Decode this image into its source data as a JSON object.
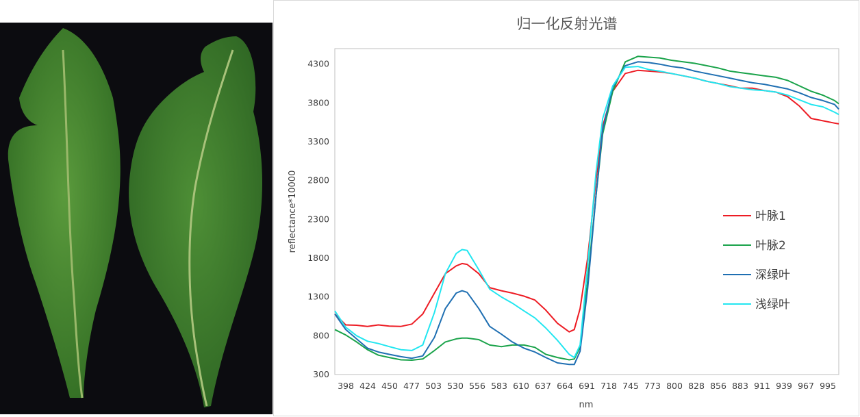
{
  "photo": {
    "description_icon": "leaf-photo"
  },
  "chart_data": {
    "type": "line",
    "title": "归一化反射光谱",
    "xlabel": "nm",
    "ylabel": "reflectance*10000",
    "ylim": [
      300,
      4500
    ],
    "yticks": [
      300,
      800,
      1300,
      1800,
      2300,
      2800,
      3300,
      3800,
      4300
    ],
    "xlim": [
      398,
      1000
    ],
    "xticks": [
      398,
      424,
      450,
      477,
      503,
      530,
      556,
      583,
      610,
      637,
      664,
      691,
      718,
      745,
      773,
      800,
      828,
      856,
      883,
      911,
      939,
      967,
      995
    ],
    "grid": false,
    "legend": "right",
    "x": [
      398,
      411,
      424,
      437,
      450,
      463,
      477,
      490,
      503,
      517,
      530,
      543,
      550,
      556,
      570,
      583,
      597,
      610,
      624,
      637,
      650,
      664,
      678,
      684,
      691,
      700,
      710,
      718,
      730,
      745,
      760,
      773,
      786,
      800,
      814,
      828,
      842,
      856,
      870,
      883,
      897,
      911,
      925,
      939,
      953,
      967,
      981,
      995,
      1000
    ],
    "series": [
      {
        "name": "叶脉1",
        "color": "#ed1c24",
        "values": [
          1080,
          940,
          935,
          920,
          940,
          925,
          920,
          950,
          1080,
          1350,
          1600,
          1700,
          1730,
          1720,
          1600,
          1420,
          1380,
          1350,
          1310,
          1260,
          1130,
          960,
          850,
          880,
          1150,
          1800,
          2800,
          3500,
          3950,
          4180,
          4220,
          4210,
          4200,
          4180,
          4150,
          4120,
          4080,
          4050,
          4020,
          3990,
          3990,
          3960,
          3940,
          3880,
          3760,
          3600,
          3570,
          3540,
          3530
        ]
      },
      {
        "name": "叶脉2",
        "color": "#1aa34a",
        "values": [
          880,
          810,
          720,
          620,
          550,
          520,
          490,
          485,
          500,
          610,
          720,
          760,
          770,
          770,
          750,
          680,
          660,
          680,
          680,
          650,
          560,
          520,
          490,
          500,
          650,
          1500,
          2600,
          3400,
          3950,
          4330,
          4400,
          4390,
          4380,
          4350,
          4330,
          4310,
          4280,
          4250,
          4210,
          4190,
          4170,
          4150,
          4130,
          4090,
          4020,
          3950,
          3900,
          3830,
          3790
        ]
      },
      {
        "name": "深绿叶",
        "color": "#1f6fb2",
        "values": [
          1080,
          880,
          760,
          640,
          590,
          560,
          530,
          510,
          540,
          780,
          1150,
          1350,
          1380,
          1360,
          1150,
          920,
          820,
          720,
          640,
          590,
          520,
          450,
          430,
          430,
          600,
          1400,
          2600,
          3450,
          4000,
          4280,
          4330,
          4320,
          4300,
          4270,
          4250,
          4210,
          4180,
          4150,
          4120,
          4090,
          4060,
          4040,
          4010,
          3980,
          3930,
          3870,
          3830,
          3780,
          3720
        ]
      },
      {
        "name": "浅绿叶",
        "color": "#22e6f0",
        "values": [
          1120,
          910,
          800,
          730,
          700,
          660,
          620,
          610,
          680,
          1100,
          1600,
          1860,
          1910,
          1900,
          1650,
          1400,
          1300,
          1220,
          1120,
          1030,
          900,
          740,
          560,
          520,
          680,
          1700,
          2900,
          3600,
          4020,
          4260,
          4270,
          4230,
          4210,
          4180,
          4150,
          4120,
          4080,
          4050,
          4010,
          3990,
          3970,
          3960,
          3940,
          3900,
          3840,
          3780,
          3750,
          3680,
          3650
        ]
      }
    ]
  }
}
